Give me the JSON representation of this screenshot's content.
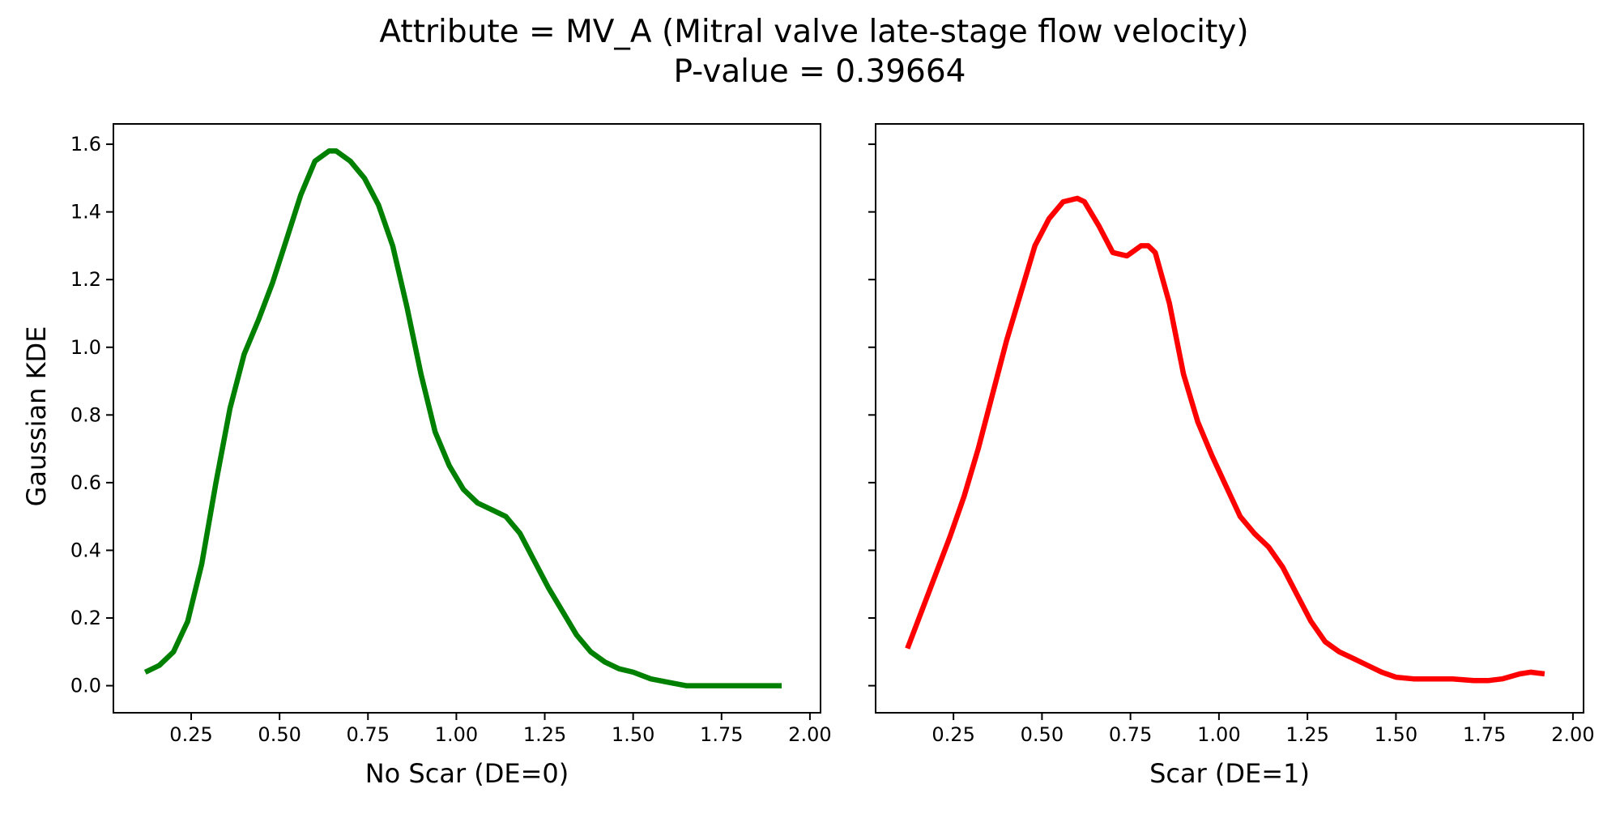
{
  "figure": {
    "title_line1": "Attribute = MV_A (Mitral valve late-stage flow velocity)",
    "title_line2": "P-value = 0.39664",
    "shared_ylabel": "Gaussian KDE"
  },
  "chart_data": [
    {
      "type": "line",
      "xlabel": "No Scar (DE=0)",
      "ylabel": "Gaussian KDE",
      "xlim": [
        0.03,
        2.03
      ],
      "ylim": [
        -0.08,
        1.66
      ],
      "xticks": [
        0.25,
        0.5,
        0.75,
        1.0,
        1.25,
        1.5,
        1.75,
        2.0
      ],
      "xtick_labels": [
        "0.25",
        "0.50",
        "0.75",
        "1.00",
        "1.25",
        "1.50",
        "1.75",
        "2.00"
      ],
      "yticks": [
        0.0,
        0.2,
        0.4,
        0.6,
        0.8,
        1.0,
        1.2,
        1.4,
        1.6
      ],
      "ytick_labels": [
        "0.0",
        "0.2",
        "0.4",
        "0.6",
        "0.8",
        "1.0",
        "1.2",
        "1.4",
        "1.6"
      ],
      "grid": false,
      "color": "#008000",
      "series": [
        {
          "x": [
            0.12,
            0.16,
            0.2,
            0.24,
            0.28,
            0.32,
            0.36,
            0.4,
            0.44,
            0.48,
            0.52,
            0.56,
            0.6,
            0.64,
            0.66,
            0.7,
            0.74,
            0.78,
            0.82,
            0.86,
            0.9,
            0.94,
            0.98,
            1.02,
            1.06,
            1.1,
            1.14,
            1.18,
            1.22,
            1.26,
            1.3,
            1.34,
            1.38,
            1.42,
            1.46,
            1.5,
            1.55,
            1.6,
            1.65,
            1.7,
            1.8,
            1.92
          ],
          "y": [
            0.04,
            0.06,
            0.1,
            0.19,
            0.36,
            0.6,
            0.82,
            0.98,
            1.08,
            1.19,
            1.32,
            1.45,
            1.55,
            1.58,
            1.58,
            1.55,
            1.5,
            1.42,
            1.3,
            1.12,
            0.92,
            0.75,
            0.65,
            0.58,
            0.54,
            0.52,
            0.5,
            0.45,
            0.37,
            0.29,
            0.22,
            0.15,
            0.1,
            0.07,
            0.05,
            0.04,
            0.02,
            0.01,
            0.0,
            0.0,
            0.0,
            0.0
          ]
        }
      ]
    },
    {
      "type": "line",
      "xlabel": "Scar (DE=1)",
      "xlim": [
        0.03,
        2.03
      ],
      "ylim": [
        -0.08,
        1.66
      ],
      "xticks": [
        0.25,
        0.5,
        0.75,
        1.0,
        1.25,
        1.5,
        1.75,
        2.0
      ],
      "xtick_labels": [
        "0.25",
        "0.50",
        "0.75",
        "1.00",
        "1.25",
        "1.50",
        "1.75",
        "2.00"
      ],
      "yticks": [
        0.0,
        0.2,
        0.4,
        0.6,
        0.8,
        1.0,
        1.2,
        1.4,
        1.6
      ],
      "grid": false,
      "color": "#ff0000",
      "series": [
        {
          "x": [
            0.12,
            0.16,
            0.2,
            0.24,
            0.28,
            0.32,
            0.36,
            0.4,
            0.44,
            0.48,
            0.52,
            0.56,
            0.6,
            0.62,
            0.66,
            0.7,
            0.74,
            0.78,
            0.8,
            0.82,
            0.86,
            0.9,
            0.94,
            0.98,
            1.02,
            1.06,
            1.1,
            1.14,
            1.18,
            1.22,
            1.26,
            1.3,
            1.34,
            1.38,
            1.42,
            1.46,
            1.5,
            1.55,
            1.6,
            1.66,
            1.72,
            1.76,
            1.8,
            1.85,
            1.88,
            1.92
          ],
          "y": [
            0.11,
            0.22,
            0.33,
            0.44,
            0.56,
            0.7,
            0.86,
            1.02,
            1.16,
            1.3,
            1.38,
            1.43,
            1.44,
            1.43,
            1.36,
            1.28,
            1.27,
            1.3,
            1.3,
            1.28,
            1.13,
            0.92,
            0.78,
            0.68,
            0.59,
            0.5,
            0.45,
            0.41,
            0.35,
            0.27,
            0.19,
            0.13,
            0.1,
            0.08,
            0.06,
            0.04,
            0.025,
            0.02,
            0.02,
            0.02,
            0.015,
            0.015,
            0.02,
            0.035,
            0.04,
            0.035
          ]
        }
      ]
    }
  ]
}
